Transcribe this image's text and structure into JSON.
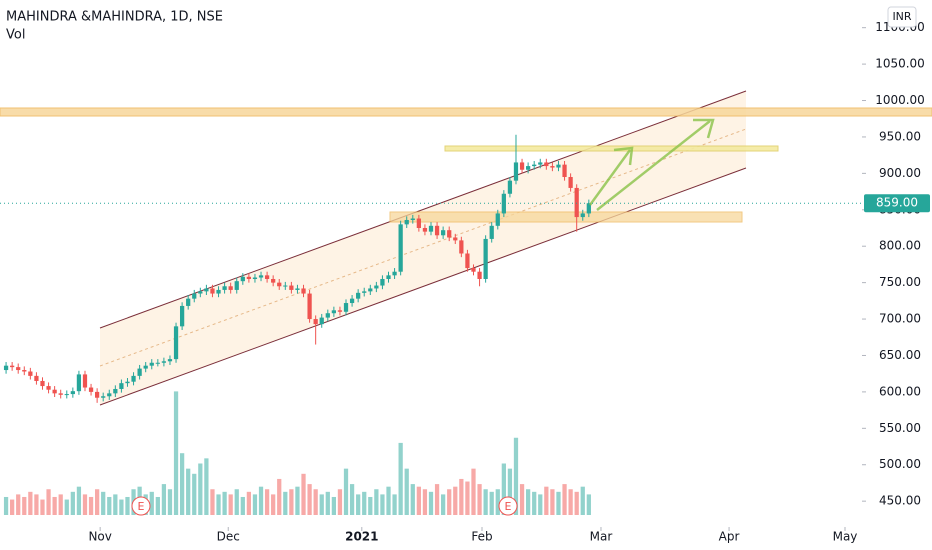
{
  "chart_data": {
    "type": "candlestick",
    "title": "MAHINDRA &MAHINDRA, 1D, NSE",
    "subtitle": "Vol",
    "currency": "INR",
    "annotations": [
      "E",
      "E"
    ],
    "up_color": "#26a69a",
    "down_color": "#ef5350",
    "last_price": {
      "value": 859,
      "label": "859.00"
    },
    "xlim": [
      -1,
      141
    ],
    "xticks": [
      {
        "value": 15.5,
        "label": "Nov"
      },
      {
        "value": 36.6,
        "label": "Dec"
      },
      {
        "value": 58.6,
        "label": "2021"
      },
      {
        "value": 78.4,
        "label": "Feb"
      },
      {
        "value": 98,
        "label": "Mar"
      },
      {
        "value": 119.1,
        "label": "Apr"
      },
      {
        "value": 138.2,
        "label": "May"
      }
    ],
    "ylim": [
      431,
      1138
    ],
    "yticks": [
      {
        "value": 450,
        "label": "450.00"
      },
      {
        "value": 500,
        "label": "500.00"
      },
      {
        "value": 550,
        "label": "550.00"
      },
      {
        "value": 600,
        "label": "600.00"
      },
      {
        "value": 650,
        "label": "650.00"
      },
      {
        "value": 700,
        "label": "700.00"
      },
      {
        "value": 750,
        "label": "750.00"
      },
      {
        "value": 800,
        "label": "800.00"
      },
      {
        "value": 850,
        "label": "850.00"
      },
      {
        "value": 900,
        "label": "900.00"
      },
      {
        "value": 950,
        "label": "950.00"
      },
      {
        "value": 1000,
        "label": "1000.00"
      },
      {
        "value": 1050,
        "label": "1050.00"
      },
      {
        "value": 1100,
        "label": "1100.00"
      }
    ],
    "y2lim": [
      0,
      10
    ],
    "open": [
      630,
      636,
      634,
      630,
      628,
      622,
      615,
      608,
      603,
      598,
      596,
      597,
      601,
      624,
      606,
      600,
      592,
      594,
      598,
      604,
      612,
      614,
      622,
      632,
      636,
      640,
      640,
      642,
      645,
      690,
      718,
      728,
      735,
      738,
      742,
      735,
      740,
      745,
      740,
      752,
      758,
      755,
      757,
      760,
      755,
      750,
      745,
      746,
      740,
      742,
      735,
      700,
      693,
      702,
      708,
      712,
      710,
      722,
      728,
      736,
      738,
      742,
      746,
      755,
      760,
      765,
      830,
      836,
      838,
      825,
      820,
      828,
      815,
      822,
      812,
      808,
      790,
      770,
      765,
      755,
      810,
      828,
      845,
      872,
      890,
      915,
      905,
      910,
      912,
      915,
      910,
      908,
      912,
      895,
      880,
      840,
      845
    ],
    "high": [
      641,
      641,
      639,
      635,
      633,
      627,
      620,
      613,
      608,
      603,
      602,
      606,
      629,
      629,
      611,
      605,
      599,
      603,
      609,
      617,
      619,
      627,
      637,
      641,
      645,
      645,
      647,
      650,
      695,
      723,
      733,
      740,
      743,
      747,
      747,
      745,
      750,
      750,
      757,
      763,
      763,
      762,
      765,
      765,
      760,
      755,
      751,
      751,
      747,
      747,
      740,
      705,
      707,
      713,
      717,
      717,
      727,
      733,
      741,
      743,
      747,
      751,
      760,
      765,
      770,
      835,
      841,
      843,
      843,
      830,
      833,
      833,
      827,
      827,
      817,
      813,
      795,
      775,
      770,
      815,
      833,
      850,
      877,
      895,
      953,
      920,
      915,
      917,
      920,
      920,
      915,
      917,
      917,
      900,
      885,
      850,
      864
    ],
    "low": [
      625,
      629,
      625,
      623,
      617,
      610,
      603,
      598,
      593,
      591,
      591,
      592,
      596,
      601,
      595,
      585,
      587,
      589,
      593,
      599,
      607,
      609,
      617,
      627,
      631,
      635,
      635,
      637,
      640,
      685,
      713,
      723,
      730,
      733,
      730,
      730,
      735,
      735,
      735,
      747,
      750,
      750,
      752,
      750,
      745,
      740,
      740,
      735,
      735,
      730,
      695,
      665,
      688,
      697,
      703,
      705,
      705,
      717,
      723,
      731,
      733,
      737,
      741,
      750,
      755,
      760,
      825,
      831,
      820,
      815,
      815,
      810,
      810,
      807,
      803,
      785,
      765,
      760,
      745,
      750,
      805,
      823,
      840,
      867,
      885,
      900,
      900,
      905,
      907,
      905,
      903,
      903,
      890,
      875,
      820,
      835,
      840
    ],
    "close": [
      636,
      634,
      630,
      628,
      622,
      615,
      608,
      603,
      598,
      596,
      597,
      601,
      624,
      606,
      600,
      592,
      594,
      598,
      604,
      612,
      614,
      622,
      632,
      636,
      640,
      640,
      642,
      645,
      690,
      718,
      728,
      735,
      738,
      742,
      735,
      740,
      745,
      740,
      752,
      758,
      755,
      757,
      760,
      755,
      750,
      745,
      746,
      740,
      742,
      735,
      700,
      693,
      702,
      708,
      712,
      710,
      722,
      728,
      736,
      738,
      742,
      746,
      755,
      760,
      765,
      830,
      836,
      838,
      825,
      820,
      828,
      815,
      822,
      812,
      808,
      790,
      770,
      765,
      755,
      810,
      828,
      845,
      872,
      890,
      915,
      905,
      910,
      912,
      915,
      910,
      908,
      912,
      895,
      880,
      840,
      845,
      859
    ],
    "volume": [
      0.35,
      0.3,
      0.4,
      0.35,
      0.45,
      0.4,
      0.3,
      0.5,
      0.35,
      0.4,
      0.3,
      0.45,
      0.55,
      0.4,
      0.35,
      0.5,
      0.45,
      0.35,
      0.4,
      0.3,
      0.35,
      0.5,
      0.55,
      0.4,
      0.45,
      0.35,
      0.6,
      0.5,
      2.4,
      1.2,
      0.9,
      0.8,
      1.0,
      1.1,
      0.5,
      0.4,
      0.45,
      0.4,
      0.5,
      0.35,
      0.45,
      0.4,
      0.55,
      0.5,
      0.4,
      0.7,
      0.45,
      0.5,
      0.55,
      0.8,
      0.6,
      0.5,
      0.4,
      0.45,
      0.35,
      0.5,
      0.9,
      0.6,
      0.4,
      0.45,
      0.35,
      0.5,
      0.4,
      0.55,
      0.4,
      1.4,
      0.9,
      0.6,
      0.55,
      0.5,
      0.45,
      0.6,
      0.4,
      0.5,
      0.55,
      0.7,
      0.65,
      0.9,
      0.6,
      0.5,
      0.45,
      0.5,
      1.0,
      0.9,
      1.5,
      0.6,
      0.5,
      0.45,
      0.4,
      0.55,
      0.5,
      0.45,
      0.6,
      0.5,
      0.45,
      0.55,
      0.4
    ]
  }
}
